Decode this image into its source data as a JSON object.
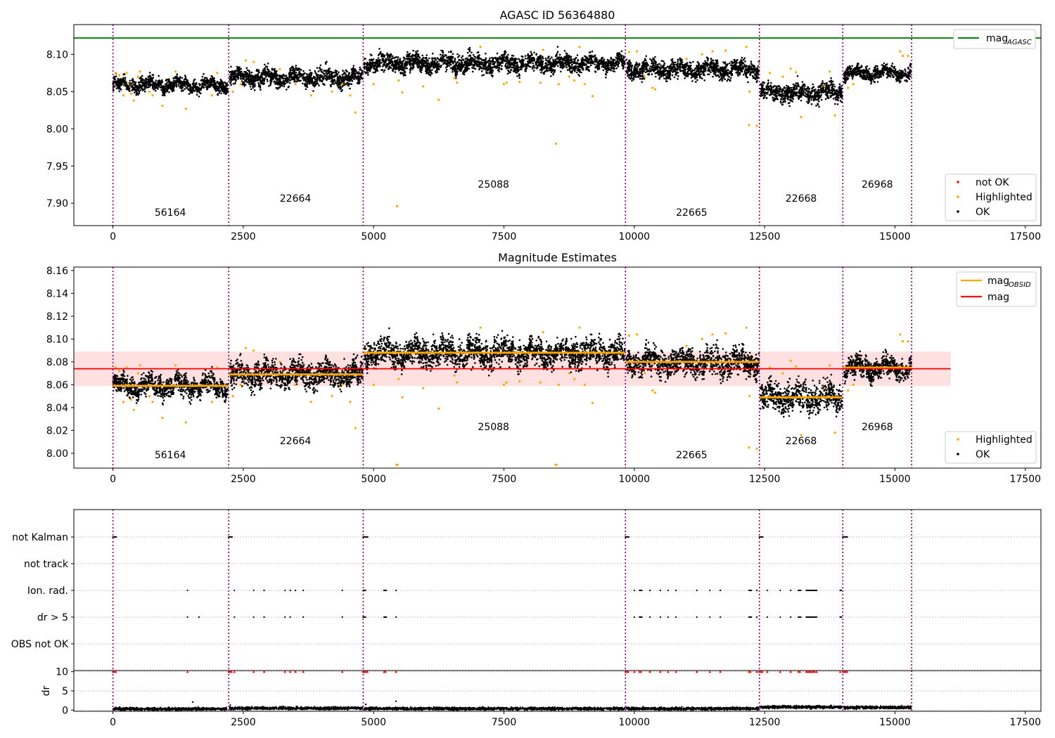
{
  "figure": {
    "title": "AGASC ID 56364880",
    "xticks": [
      0,
      2500,
      5000,
      7500,
      10000,
      12500,
      15000,
      17500
    ],
    "xlim": [
      -750,
      17800
    ],
    "obs_boundaries": [
      0,
      2220,
      4800,
      9830,
      12400,
      14000,
      15320
    ],
    "obsids": [
      {
        "id": "56164",
        "x": 1100
      },
      {
        "id": "22664",
        "x": 3500
      },
      {
        "id": "25088",
        "x": 7300
      },
      {
        "id": "22665",
        "x": 11100
      },
      {
        "id": "22668",
        "x": 13200
      },
      {
        "id": "26968",
        "x": 14660
      }
    ]
  },
  "chart_data": [
    {
      "type": "scatter",
      "title": "AGASC ID 56364880",
      "xlim": [
        -750,
        17800
      ],
      "ylim": [
        7.87,
        8.14
      ],
      "yticks": [
        "7.90",
        "7.95",
        "8.00",
        "8.05",
        "8.10"
      ],
      "mag_agasc": 8.122,
      "legend_lines": [
        {
          "name": "mag",
          "sub": "AGASC",
          "color": "#008000"
        }
      ],
      "legend_points": [
        {
          "name": "not OK",
          "color": "#ff0000"
        },
        {
          "name": "Highlighted",
          "color": "#ffa500"
        },
        {
          "name": "OK",
          "color": "#000000"
        }
      ],
      "segments": [
        {
          "obsid": "56164",
          "x0": 0,
          "x1": 2200,
          "center": 8.059,
          "spread": 0.012
        },
        {
          "obsid": "22664",
          "x0": 2240,
          "x1": 4790,
          "center": 8.069,
          "spread": 0.015
        },
        {
          "obsid": "25088",
          "x0": 4820,
          "x1": 9820,
          "center": 8.088,
          "spread": 0.016
        },
        {
          "obsid": "22665",
          "x0": 9850,
          "x1": 12390,
          "center": 8.08,
          "spread": 0.016
        },
        {
          "obsid": "22668",
          "x0": 12420,
          "x1": 13990,
          "center": 8.049,
          "spread": 0.017
        },
        {
          "obsid": "26968",
          "x0": 14020,
          "x1": 15310,
          "center": 8.075,
          "spread": 0.012
        }
      ],
      "highlighted": [
        [
          50,
          8.075
        ],
        [
          120,
          8.072
        ],
        [
          200,
          8.045
        ],
        [
          260,
          8.075
        ],
        [
          300,
          8.06
        ],
        [
          350,
          8.047
        ],
        [
          400,
          8.038
        ],
        [
          480,
          8.07
        ],
        [
          520,
          8.077
        ],
        [
          700,
          8.05
        ],
        [
          760,
          8.045
        ],
        [
          950,
          8.031
        ],
        [
          1200,
          8.077
        ],
        [
          1400,
          8.027
        ],
        [
          1900,
          8.045
        ],
        [
          2000,
          8.075
        ],
        [
          2300,
          8.05
        ],
        [
          2450,
          8.06
        ],
        [
          2550,
          8.092
        ],
        [
          2700,
          8.09
        ],
        [
          3200,
          8.08
        ],
        [
          3500,
          8.06
        ],
        [
          3800,
          8.045
        ],
        [
          4200,
          8.05
        ],
        [
          4400,
          8.06
        ],
        [
          4550,
          8.045
        ],
        [
          4650,
          8.022
        ],
        [
          5000,
          8.06
        ],
        [
          5450,
          7.896
        ],
        [
          5480,
          8.065
        ],
        [
          5550,
          8.049
        ],
        [
          5950,
          8.057
        ],
        [
          6250,
          8.039
        ],
        [
          6550,
          8.068
        ],
        [
          6600,
          8.062
        ],
        [
          7050,
          8.11
        ],
        [
          7500,
          8.06
        ],
        [
          7550,
          8.062
        ],
        [
          7800,
          8.063
        ],
        [
          8200,
          8.062
        ],
        [
          8250,
          8.106
        ],
        [
          8500,
          7.98
        ],
        [
          8550,
          8.06
        ],
        [
          8750,
          8.07
        ],
        [
          8850,
          8.065
        ],
        [
          8950,
          8.11
        ],
        [
          9050,
          8.06
        ],
        [
          9200,
          8.044
        ],
        [
          9900,
          8.103
        ],
        [
          10050,
          8.104
        ],
        [
          10200,
          8.07
        ],
        [
          10350,
          8.055
        ],
        [
          10400,
          8.053
        ],
        [
          11000,
          8.094
        ],
        [
          11300,
          8.1
        ],
        [
          11500,
          8.104
        ],
        [
          11750,
          8.105
        ],
        [
          12150,
          8.11
        ],
        [
          12200,
          8.005
        ],
        [
          12210,
          8.05
        ],
        [
          12350,
          8.004
        ],
        [
          12600,
          8.075
        ],
        [
          12850,
          8.07
        ],
        [
          13000,
          8.081
        ],
        [
          13100,
          8.076
        ],
        [
          13200,
          8.016
        ],
        [
          13650,
          8.057
        ],
        [
          13750,
          8.077
        ],
        [
          13850,
          8.018
        ],
        [
          14100,
          8.055
        ],
        [
          14200,
          8.06
        ],
        [
          15100,
          8.104
        ],
        [
          15150,
          8.098
        ],
        [
          15250,
          8.098
        ]
      ],
      "not_ok": []
    },
    {
      "type": "scatter",
      "title": "Magnitude Estimates",
      "xlim": [
        -750,
        17800
      ],
      "ylim": [
        7.987,
        8.163
      ],
      "yticks": [
        "8.00",
        "8.02",
        "8.04",
        "8.06",
        "8.08",
        "8.10",
        "8.12",
        "8.14",
        "8.16"
      ],
      "mag": 8.074,
      "mag_band": [
        8.059,
        8.089
      ],
      "mag_obsid": [
        {
          "x0": 0,
          "x1": 2220,
          "y": 8.059
        },
        {
          "x0": 2220,
          "x1": 4800,
          "y": 8.069
        },
        {
          "x0": 4800,
          "x1": 9830,
          "y": 8.088
        },
        {
          "x0": 9830,
          "x1": 12400,
          "y": 8.08
        },
        {
          "x0": 12400,
          "x1": 14000,
          "y": 8.049
        },
        {
          "x0": 14000,
          "x1": 15320,
          "y": 8.075
        }
      ],
      "legend_lines": [
        {
          "name": "mag",
          "sub": "OBSID",
          "color": "#ffa500"
        },
        {
          "name": "mag",
          "sub": "",
          "color": "#ff0000"
        }
      ],
      "legend_points": [
        {
          "name": "Highlighted",
          "color": "#ffa500"
        },
        {
          "name": "OK",
          "color": "#000000"
        }
      ],
      "off_scale": [
        5450,
        8500
      ]
    },
    {
      "type": "scatter",
      "xlim": [
        -750,
        17800
      ],
      "categories": [
        "not Kalman",
        "not track",
        "Ion. rad.",
        "dr > 5",
        "OBS not OK"
      ],
      "flags": {
        "not Kalman": [
          [
            0,
            80
          ],
          [
            2220,
            90
          ],
          [
            4800,
            100
          ],
          [
            9830,
            90
          ],
          [
            12400,
            80
          ],
          [
            14000,
            100
          ]
        ],
        "not track": [],
        "Ion. rad.": [
          [
            1430,
            1
          ],
          [
            2330,
            1
          ],
          [
            2700,
            1
          ],
          [
            2900,
            1
          ],
          [
            3300,
            2
          ],
          [
            3400,
            1
          ],
          [
            3500,
            1
          ],
          [
            3650,
            1
          ],
          [
            4400,
            1
          ],
          [
            4800,
            60
          ],
          [
            5200,
            60
          ],
          [
            5430,
            1
          ],
          [
            10000,
            1
          ],
          [
            10100,
            60
          ],
          [
            10300,
            1
          ],
          [
            10500,
            1
          ],
          [
            10650,
            1
          ],
          [
            10800,
            1
          ],
          [
            11200,
            1
          ],
          [
            11450,
            1
          ],
          [
            11650,
            1
          ],
          [
            12200,
            60
          ],
          [
            12350,
            1
          ],
          [
            12550,
            1
          ],
          [
            12800,
            1
          ],
          [
            13000,
            1
          ],
          [
            13150,
            60
          ],
          [
            13300,
            200
          ],
          [
            13500,
            1
          ],
          [
            13950,
            40
          ]
        ],
        "dr > 5": [
          [
            1430,
            1
          ],
          [
            1650,
            1
          ],
          [
            2330,
            1
          ],
          [
            2700,
            1
          ],
          [
            2900,
            1
          ],
          [
            3300,
            2
          ],
          [
            3400,
            1
          ],
          [
            3650,
            1
          ],
          [
            4400,
            1
          ],
          [
            4800,
            60
          ],
          [
            5200,
            60
          ],
          [
            5430,
            1
          ],
          [
            10000,
            1
          ],
          [
            10100,
            60
          ],
          [
            10300,
            1
          ],
          [
            10500,
            1
          ],
          [
            10650,
            1
          ],
          [
            10800,
            1
          ],
          [
            11200,
            1
          ],
          [
            11450,
            1
          ],
          [
            11650,
            1
          ],
          [
            12200,
            60
          ],
          [
            12350,
            1
          ],
          [
            12550,
            1
          ],
          [
            12800,
            1
          ],
          [
            13000,
            1
          ],
          [
            13150,
            60
          ],
          [
            13300,
            200
          ],
          [
            13500,
            1
          ],
          [
            13950,
            40
          ]
        ],
        "OBS not OK": []
      }
    },
    {
      "type": "scatter",
      "xlim": [
        -750,
        17800
      ],
      "ylabel": "dr",
      "ylim": [
        -0.3,
        10.3
      ],
      "yticks": [
        "0",
        "5",
        "10"
      ],
      "dr_level": [
        {
          "x0": 0,
          "x1": 2200,
          "y": 0.3
        },
        {
          "x0": 2240,
          "x1": 4790,
          "y": 0.5
        },
        {
          "x0": 4820,
          "x1": 9820,
          "y": 0.4
        },
        {
          "x0": 9850,
          "x1": 12390,
          "y": 0.4
        },
        {
          "x0": 12420,
          "x1": 13990,
          "y": 0.8
        },
        {
          "x0": 14020,
          "x1": 15310,
          "y": 0.7
        }
      ],
      "dr_outliers": [
        [
          1530,
          2.1
        ],
        [
          5430,
          2.3
        ],
        [
          2250,
          1.3
        ],
        [
          4850,
          1.5
        ]
      ],
      "clipped_at": 10
    }
  ]
}
